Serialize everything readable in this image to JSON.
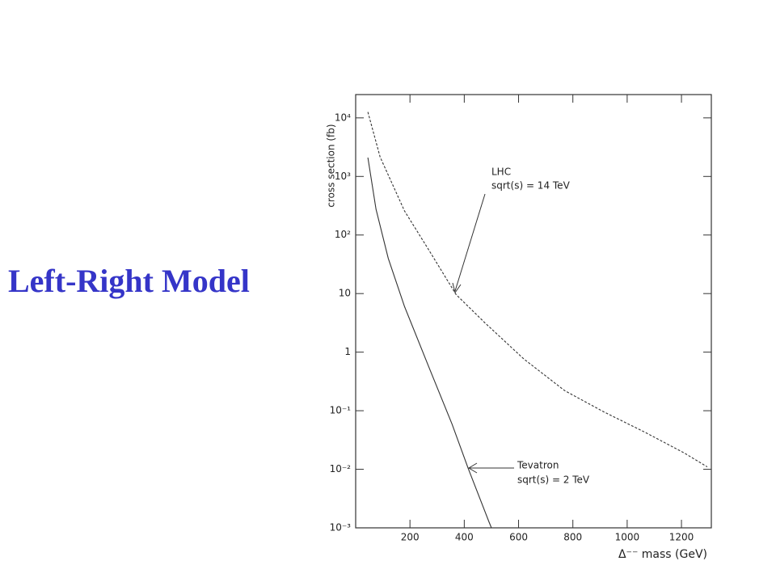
{
  "slide_title": "Left-Right Model",
  "chart_data": {
    "type": "line",
    "ylabel": "cross section (fb)",
    "xlabel": "Δ⁻⁻ mass (GeV)",
    "xlim": [
      0,
      1310
    ],
    "xticks": [
      200,
      400,
      600,
      800,
      1000,
      1200
    ],
    "ylim": [
      0.001,
      25000
    ],
    "log_y": true,
    "yticks": [
      {
        "value": 0.001,
        "label": "10⁻³"
      },
      {
        "value": 0.01,
        "label": "10⁻²"
      },
      {
        "value": 0.1,
        "label": "10⁻¹"
      },
      1,
      10,
      {
        "value": 100,
        "label": "10²"
      },
      {
        "value": 1000,
        "label": "10³"
      },
      {
        "value": 10000,
        "label": "10⁴"
      }
    ],
    "series": [
      {
        "name": "LHC",
        "color": "#333333",
        "dash": true,
        "x": [
          45,
          90,
          180,
          270,
          370,
          475,
          620,
          770,
          915,
          1065,
          1210,
          1295
        ],
        "values": [
          12600,
          2150,
          257,
          55,
          9.6,
          3.2,
          0.76,
          0.22,
          0.095,
          0.043,
          0.019,
          0.011
        ]
      },
      {
        "name": "Tevatron",
        "color": "#333333",
        "dash": false,
        "x": [
          45,
          75,
          120,
          180,
          270,
          355,
          415,
          490,
          500
        ],
        "values": [
          2100,
          275,
          40,
          6,
          0.55,
          0.059,
          0.0102,
          0.0013,
          0.001
        ]
      }
    ],
    "annotations": [
      [
        "LHC",
        "sqrt(s) = 14 TeV"
      ],
      [
        "Tevatron",
        "sqrt(s) = 2 TeV"
      ]
    ]
  }
}
